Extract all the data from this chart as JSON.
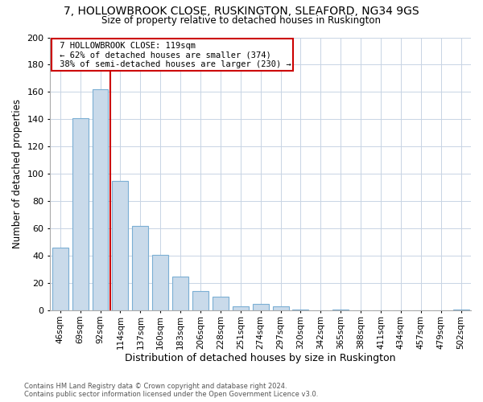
{
  "title": "7, HOLLOWBROOK CLOSE, RUSKINGTON, SLEAFORD, NG34 9GS",
  "subtitle": "Size of property relative to detached houses in Ruskington",
  "xlabel": "Distribution of detached houses by size in Ruskington",
  "ylabel": "Number of detached properties",
  "categories": [
    "46sqm",
    "69sqm",
    "92sqm",
    "114sqm",
    "137sqm",
    "160sqm",
    "183sqm",
    "206sqm",
    "228sqm",
    "251sqm",
    "274sqm",
    "297sqm",
    "320sqm",
    "342sqm",
    "365sqm",
    "388sqm",
    "411sqm",
    "434sqm",
    "457sqm",
    "479sqm",
    "502sqm"
  ],
  "values": [
    46,
    141,
    162,
    95,
    62,
    41,
    25,
    14,
    10,
    3,
    5,
    3,
    1,
    0,
    1,
    0,
    0,
    0,
    0,
    0,
    1
  ],
  "property_label": "7 HOLLOWBROOK CLOSE: 119sqm",
  "pct_smaller": 62,
  "n_smaller": 374,
  "pct_larger_semi": 38,
  "n_larger_semi": 230,
  "bar_color": "#c9daea",
  "bar_edge_color": "#7bafd4",
  "marker_color": "#cc0000",
  "annotation_box_color": "#cc0000",
  "ylim": [
    0,
    200
  ],
  "yticks": [
    0,
    20,
    40,
    60,
    80,
    100,
    120,
    140,
    160,
    180,
    200
  ],
  "footer_line1": "Contains HM Land Registry data © Crown copyright and database right 2024.",
  "footer_line2": "Contains public sector information licensed under the Open Government Licence v3.0.",
  "property_bin_index": 3,
  "bg_color": "#ffffff",
  "grid_color": "#c8d4e4"
}
